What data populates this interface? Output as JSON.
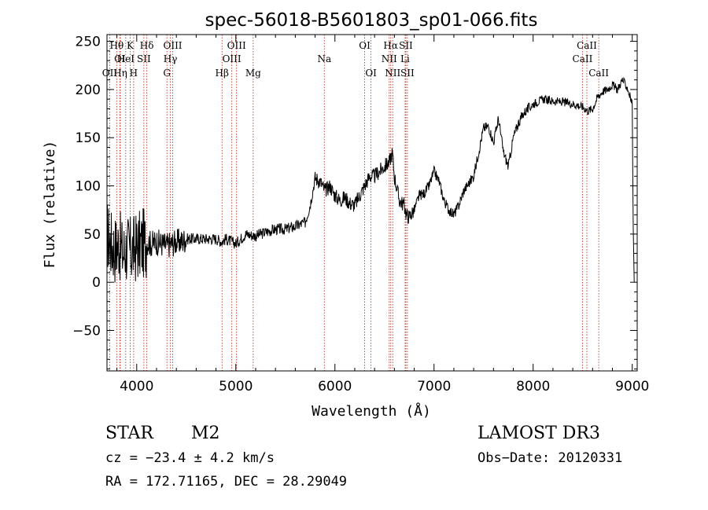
{
  "chart_data": {
    "type": "line",
    "title": "spec-56018-B5601803_sp01-066.fits",
    "xlabel": "Wavelength (Å)",
    "ylabel": "Flux (relative)",
    "xlim": [
      3700,
      9050
    ],
    "ylim": [
      -92,
      257
    ],
    "x_ticks": [
      4000,
      5000,
      6000,
      7000,
      8000,
      9000
    ],
    "y_ticks": [
      -50,
      0,
      50,
      100,
      150,
      200,
      250
    ],
    "x_tick_labels": [
      "4000",
      "5000",
      "6000",
      "7000",
      "8000",
      "9000"
    ],
    "y_tick_labels": [
      "−50",
      "0",
      "50",
      "100",
      "150",
      "200",
      "250"
    ],
    "series": [
      {
        "name": "flux",
        "x": [
          3700,
          3740,
          3780,
          3820,
          3860,
          3900,
          3940,
          3980,
          4020,
          4060,
          4100,
          4150,
          4200,
          4250,
          4300,
          4350,
          4400,
          4450,
          4500,
          4600,
          4700,
          4800,
          4860,
          4900,
          5000,
          5050,
          5100,
          5200,
          5300,
          5400,
          5500,
          5600,
          5700,
          5750,
          5800,
          5850,
          5900,
          5950,
          6000,
          6050,
          6100,
          6150,
          6200,
          6250,
          6300,
          6350,
          6400,
          6450,
          6500,
          6550,
          6580,
          6600,
          6650,
          6700,
          6720,
          6750,
          6800,
          6850,
          6900,
          6950,
          7000,
          7050,
          7100,
          7150,
          7200,
          7250,
          7300,
          7400,
          7500,
          7550,
          7600,
          7650,
          7700,
          7750,
          7800,
          7850,
          7900,
          8000,
          8100,
          8200,
          8300,
          8400,
          8500,
          8550,
          8600,
          8650,
          8700,
          8750,
          8800,
          8850,
          8900,
          8950,
          9000,
          9010,
          9020
        ],
        "values": [
          50,
          40,
          35,
          40,
          30,
          35,
          32,
          35,
          38,
          40,
          42,
          40,
          42,
          40,
          38,
          40,
          42,
          42,
          45,
          45,
          45,
          45,
          42,
          45,
          40,
          45,
          50,
          48,
          52,
          55,
          55,
          58,
          62,
          80,
          108,
          105,
          95,
          100,
          90,
          85,
          88,
          82,
          80,
          90,
          100,
          110,
          110,
          115,
          120,
          125,
          135,
          110,
          85,
          80,
          70,
          68,
          75,
          90,
          92,
          100,
          115,
          105,
          85,
          75,
          70,
          80,
          95,
          110,
          160,
          162,
          145,
          170,
          135,
          120,
          150,
          165,
          175,
          185,
          190,
          188,
          187,
          185,
          182,
          178,
          180,
          192,
          198,
          200,
          205,
          200,
          210,
          202,
          185,
          55,
          0
        ]
      }
    ],
    "spectral_lines": [
      {
        "name": "OII",
        "wavelength": 3727,
        "row": 3
      },
      {
        "name": "Hθ",
        "wavelength": 3798,
        "row": 1
      },
      {
        "name": "OI",
        "wavelength": 3830,
        "row": 2
      },
      {
        "name": "Hη",
        "wavelength": 3835,
        "row": 3
      },
      {
        "name": "HeI",
        "wavelength": 3889,
        "row": 2
      },
      {
        "name": "K",
        "wavelength": 3934,
        "row": 1
      },
      {
        "name": "H",
        "wavelength": 3969,
        "row": 3
      },
      {
        "name": "SII",
        "wavelength": 4072,
        "row": 2
      },
      {
        "name": "Hδ",
        "wavelength": 4102,
        "row": 1
      },
      {
        "name": "OIII",
        "wavelength": 4363,
        "row": 1
      },
      {
        "name": "Hγ",
        "wavelength": 4340,
        "row": 2
      },
      {
        "name": "G",
        "wavelength": 4305,
        "row": 3
      },
      {
        "name": "Hβ",
        "wavelength": 4861,
        "row": 3
      },
      {
        "name": "OIII",
        "wavelength": 5007,
        "row": 1
      },
      {
        "name": "OIII",
        "wavelength": 4959,
        "row": 2
      },
      {
        "name": "Mg",
        "wavelength": 5175,
        "row": 3
      },
      {
        "name": "Na",
        "wavelength": 5893,
        "row": 2
      },
      {
        "name": "OI",
        "wavelength": 6300,
        "row": 1
      },
      {
        "name": "OI",
        "wavelength": 6364,
        "row": 3
      },
      {
        "name": "Hα",
        "wavelength": 6563,
        "row": 1
      },
      {
        "name": "NII",
        "wavelength": 6548,
        "row": 2
      },
      {
        "name": "NII",
        "wavelength": 6583,
        "row": 3
      },
      {
        "name": "SII",
        "wavelength": 6716,
        "row": 1
      },
      {
        "name": "Li",
        "wavelength": 6708,
        "row": 2
      },
      {
        "name": "SII",
        "wavelength": 6731,
        "row": 3
      },
      {
        "name": "CaII",
        "wavelength": 8542,
        "row": 1
      },
      {
        "name": "CaII",
        "wavelength": 8498,
        "row": 2
      },
      {
        "name": "CaII",
        "wavelength": 8662,
        "row": 3
      }
    ]
  },
  "info": {
    "object_class": "STAR",
    "subclass": "M2",
    "survey": "LAMOST DR3",
    "cz": "cz = −23.4 ± 4.2 km/s",
    "obs_date": "Obs−Date: 20120331",
    "coords": "RA = 172.71165, DEC =  28.29049"
  },
  "colors": {
    "line": "#000000",
    "marker": "#c0392b",
    "background": "#ffffff"
  }
}
